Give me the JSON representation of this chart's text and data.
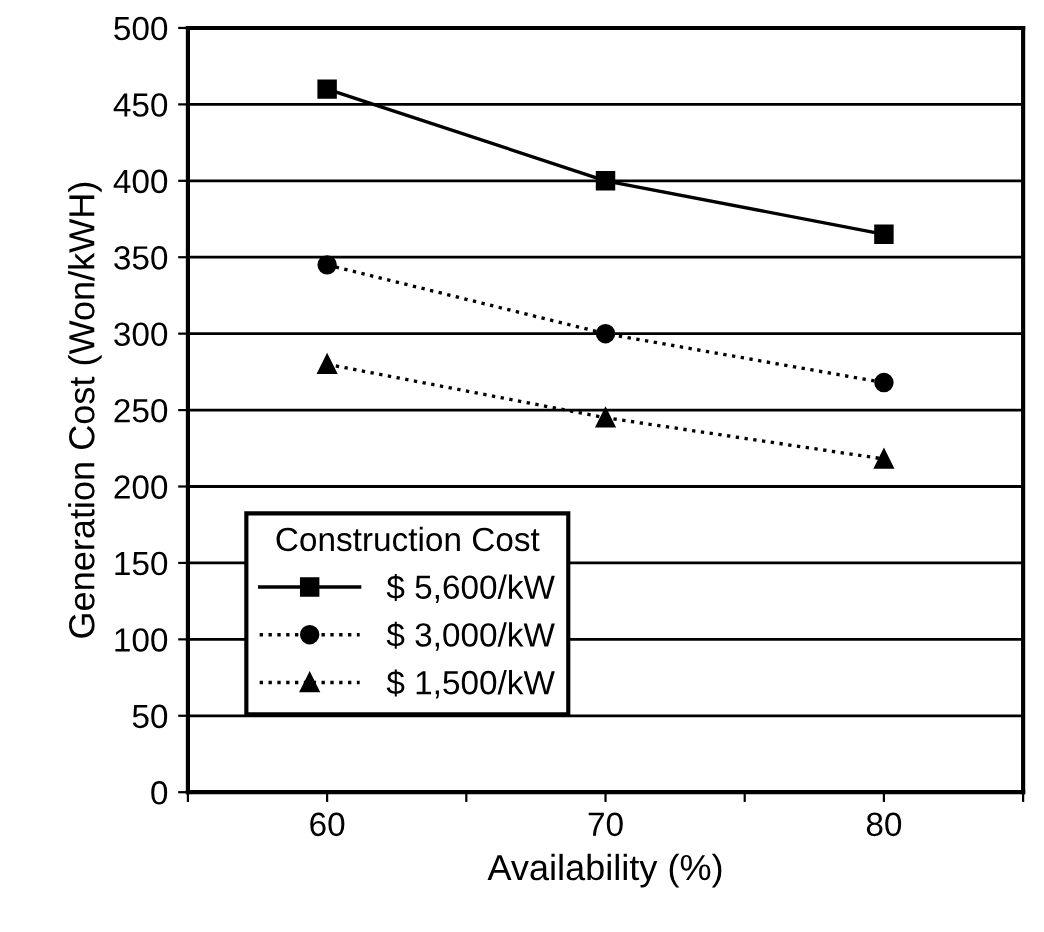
{
  "chart_data": {
    "type": "line",
    "xlabel": "Availability (%)",
    "ylabel": "Generation Cost (Won/kWH)",
    "legend_title": "Construction Cost",
    "x": [
      60,
      70,
      80
    ],
    "series": [
      {
        "name": "$ 5,600/kW",
        "color": "#000000",
        "values": [
          460,
          400,
          365
        ],
        "marker": "square",
        "line_style": "solid"
      },
      {
        "name": "$ 3,000/kW",
        "color": "#000000",
        "values": [
          345,
          300,
          268
        ],
        "marker": "circle",
        "line_style": "dotted"
      },
      {
        "name": "$ 1,500/kW",
        "color": "#000000",
        "values": [
          280,
          245,
          218
        ],
        "marker": "triangle",
        "line_style": "dotted"
      }
    ],
    "xlim": [
      55,
      85
    ],
    "xticks": [
      {
        "value": 55,
        "label": null
      },
      60,
      {
        "value": 65,
        "label": null
      },
      70,
      {
        "value": 75,
        "label": null
      },
      80,
      {
        "value": 85,
        "label": null
      }
    ],
    "ylim": [
      0,
      500
    ],
    "yticks": [
      0,
      50,
      100,
      150,
      200,
      250,
      300,
      350,
      400,
      450,
      500
    ],
    "grid": "y",
    "legend": "bottom left"
  }
}
